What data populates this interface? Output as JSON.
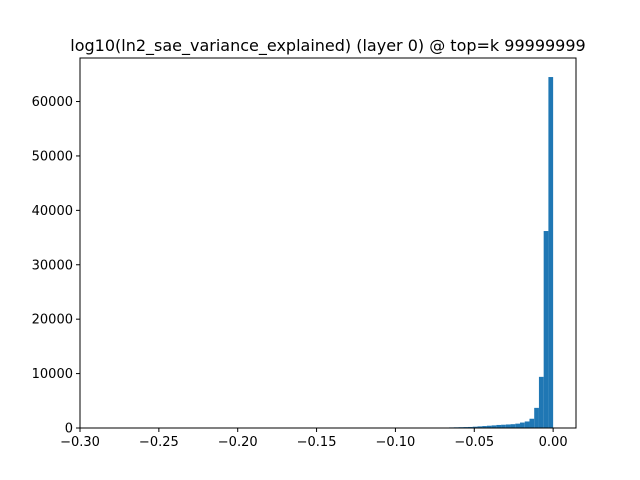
{
  "chart_data": {
    "type": "bar",
    "title": "log10(ln2_sae_variance_explained) (layer 0) @ top=k 99999999",
    "xlabel": "",
    "ylabel": "",
    "xlim": [
      -0.3,
      0.0145
    ],
    "ylim": [
      0,
      68000
    ],
    "x_ticks": [
      -0.3,
      -0.25,
      -0.2,
      -0.15,
      -0.1,
      -0.05,
      0.0
    ],
    "x_tick_labels": [
      "−0.30",
      "−0.25",
      "−0.20",
      "−0.15",
      "−0.10",
      "−0.05",
      "0.00"
    ],
    "y_ticks": [
      0,
      10000,
      20000,
      30000,
      40000,
      50000,
      60000
    ],
    "y_tick_labels": [
      "0",
      "10000",
      "20000",
      "30000",
      "40000",
      "50000",
      "60000"
    ],
    "bar_color": "#1f77b4",
    "grid": false,
    "legend": "none",
    "bins": [
      {
        "x0": -0.072,
        "x1": -0.069,
        "value": 80
      },
      {
        "x0": -0.069,
        "x1": -0.066,
        "value": 90
      },
      {
        "x0": -0.066,
        "x1": -0.063,
        "value": 110
      },
      {
        "x0": -0.063,
        "x1": -0.06,
        "value": 130
      },
      {
        "x0": -0.06,
        "x1": -0.057,
        "value": 150
      },
      {
        "x0": -0.057,
        "x1": -0.054,
        "value": 170
      },
      {
        "x0": -0.054,
        "x1": -0.051,
        "value": 190
      },
      {
        "x0": -0.051,
        "x1": -0.048,
        "value": 240
      },
      {
        "x0": -0.048,
        "x1": -0.045,
        "value": 300
      },
      {
        "x0": -0.045,
        "x1": -0.042,
        "value": 360
      },
      {
        "x0": -0.042,
        "x1": -0.039,
        "value": 420
      },
      {
        "x0": -0.039,
        "x1": -0.036,
        "value": 480
      },
      {
        "x0": -0.036,
        "x1": -0.033,
        "value": 560
      },
      {
        "x0": -0.033,
        "x1": -0.03,
        "value": 600
      },
      {
        "x0": -0.03,
        "x1": -0.027,
        "value": 650
      },
      {
        "x0": -0.027,
        "x1": -0.024,
        "value": 700
      },
      {
        "x0": -0.024,
        "x1": -0.021,
        "value": 800
      },
      {
        "x0": -0.021,
        "x1": -0.018,
        "value": 1000
      },
      {
        "x0": -0.018,
        "x1": -0.015,
        "value": 1200
      },
      {
        "x0": -0.015,
        "x1": -0.012,
        "value": 1700
      },
      {
        "x0": -0.012,
        "x1": -0.009,
        "value": 3700
      },
      {
        "x0": -0.009,
        "x1": -0.006,
        "value": 9400
      },
      {
        "x0": -0.006,
        "x1": -0.003,
        "value": 36200
      },
      {
        "x0": -0.003,
        "x1": 0.0,
        "value": 64500
      }
    ]
  }
}
